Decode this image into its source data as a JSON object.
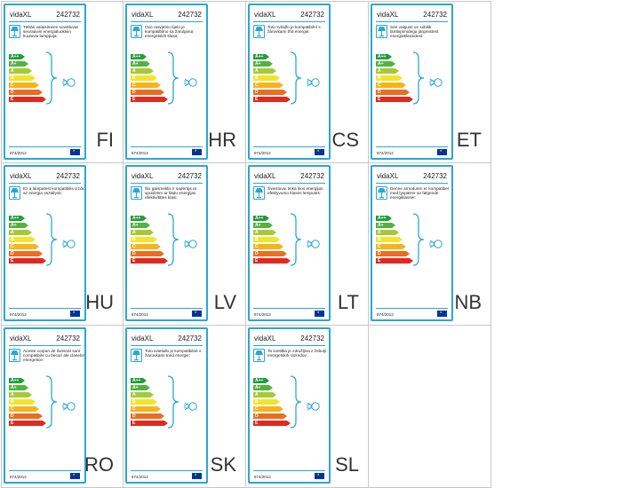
{
  "labels": [
    {
      "lang": "FI",
      "brand": "vidaXL",
      "code": "242732",
      "regulation": "874/2012",
      "description": "Tähän valaisimeen soveltuvat seuraaviin energialuokkiin kuuluvia lamppuja:"
    },
    {
      "lang": "HR",
      "brand": "vidaXL",
      "code": "242732",
      "regulation": "874/2012",
      "description": "Ovo rasvjetno tijelo je kompatibilno sa žaruljama energetskih klasa:"
    },
    {
      "lang": "CS",
      "brand": "vidaXL",
      "code": "242732",
      "regulation": "874/2012",
      "description": "Toto svítidlo je kompatibilní s žárovkami tříd energie:"
    },
    {
      "lang": "ET",
      "brand": "vidaXL",
      "code": "242732",
      "regulation": "874/2012",
      "description": "See valgusti on sobilik lambipirnidega järgmistest energiaklassidest:"
    },
    {
      "lang": "HU",
      "brand": "vidaXL",
      "code": "242732",
      "regulation": "874/2012",
      "description": "Ez a lámpatest kompatibilis izzók az energia osztályok:"
    },
    {
      "lang": "LV",
      "brand": "vidaXL",
      "code": "242732",
      "regulation": "874/2012",
      "description": "Šis gaismeklis ir saderīgs ar spuldzēm ar šādu energijas efektivitātes klasi:"
    },
    {
      "lang": "LT",
      "brand": "vidaXL",
      "code": "242732",
      "regulation": "874/2012",
      "description": "Šviestuvui tinka šios energijos efektyvumo klasės lemputės:"
    },
    {
      "lang": "NB",
      "brand": "vidaXL",
      "code": "242732",
      "regulation": "874/2012",
      "description": "Denne armaturen er kompatibel med lyspærer av følgende energiklasser:"
    },
    {
      "lang": "RO",
      "brand": "vidaXL",
      "code": "242732",
      "regulation": "874/2012",
      "description": "Aceste corpuri de iluminat sunt compatibile cu becuri ale claselor energetice:"
    },
    {
      "lang": "SK",
      "brand": "vidaXL",
      "code": "242732",
      "regulation": "874/2012",
      "description": "Toto svietidlo je kompatibilné s žiarovkami tried energie:"
    },
    {
      "lang": "SL",
      "brand": "vidaXL",
      "code": "242732",
      "regulation": "874/2012",
      "description": "Ta svetilka je združljiva z žebulji energetskih razredov:"
    }
  ],
  "energy_classes": [
    {
      "label": "A++",
      "color": "#1f9e3b"
    },
    {
      "label": "A+",
      "color": "#52b33d"
    },
    {
      "label": "A",
      "color": "#a6c93a"
    },
    {
      "label": "B",
      "color": "#f1e52a"
    },
    {
      "label": "C",
      "color": "#f5b41f"
    },
    {
      "label": "D",
      "color": "#ed6c1f"
    },
    {
      "label": "E",
      "color": "#e02a20"
    }
  ],
  "accent_color": "#2aa7d6",
  "icons": {
    "lamp": "table-lamp-icon",
    "bulb": "light-bulb-icon",
    "eu": "eu-flag-icon"
  }
}
